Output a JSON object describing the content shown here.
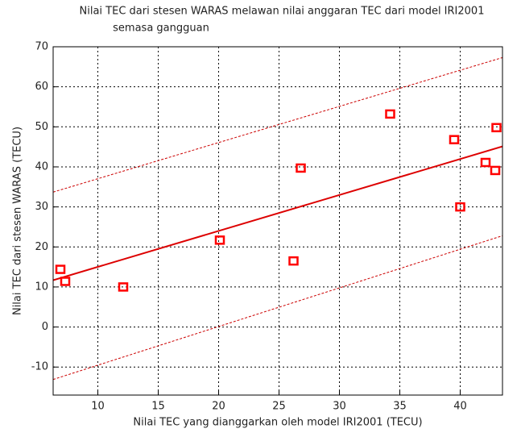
{
  "chart_data": {
    "type": "scatter",
    "title": "Nilai TEC dari stesen WARAS melawan nilai anggaran TEC dari model IRI2001",
    "subtitle": "semasa gangguan",
    "x_label": "Nilai TEC yang dianggarkan oleh model IRI2001 (TECU)",
    "y_label": "Nilai TEC dari stesen WARAS (TECU)",
    "xlim": [
      6.3,
      43.5
    ],
    "ylim": [
      -17,
      70
    ],
    "xticks": [
      10,
      15,
      20,
      25,
      30,
      35,
      40
    ],
    "yticks": [
      -10,
      0,
      10,
      20,
      30,
      40,
      50,
      60,
      70
    ],
    "grid": true,
    "series": [
      {
        "kind": "points",
        "color": "#ff0000",
        "x": [
          6.9,
          7.3,
          12.1,
          20.1,
          26.2,
          26.8,
          34.2,
          39.5,
          40.0,
          42.1,
          42.9,
          43.0
        ],
        "values": [
          14.3,
          11.3,
          9.9,
          21.6,
          16.4,
          39.6,
          53.1,
          46.7,
          29.9,
          41.0,
          39.0,
          49.7
        ]
      },
      {
        "kind": "fit",
        "color": "#dd0000",
        "x": [
          6.3,
          43.5
        ],
        "values": [
          11.7,
          45.1
        ]
      },
      {
        "kind": "bound",
        "color": "#cc0000",
        "x": [
          6.3,
          43.5
        ],
        "values": [
          33.7,
          67.3
        ]
      },
      {
        "kind": "bound",
        "color": "#cc0000",
        "x": [
          6.3,
          43.5
        ],
        "values": [
          -13.1,
          22.8
        ]
      }
    ]
  }
}
